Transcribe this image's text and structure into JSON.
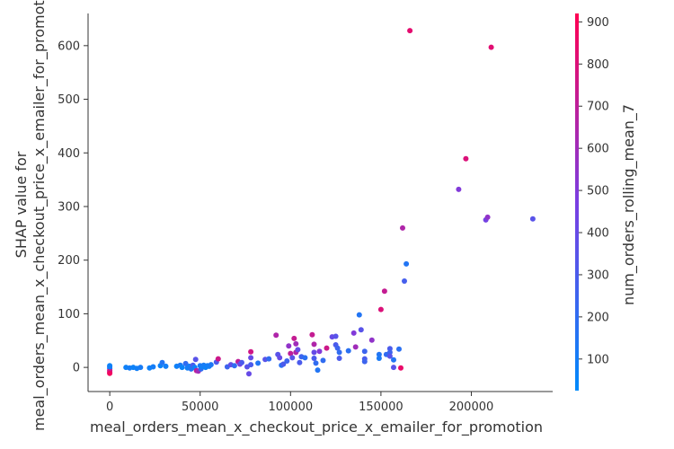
{
  "chart_data": {
    "type": "scatter",
    "xlabel": "meal_orders_mean_x_checkout_price_x_emailer_for_promotion",
    "ylabel_lines": [
      "SHAP value for",
      "meal_orders_mean_x_checkout_price_x_emailer_for_promotion"
    ],
    "xlim": [
      -12000,
      245000
    ],
    "ylim": [
      -45,
      660
    ],
    "xticks": [
      0,
      50000,
      100000,
      150000,
      200000
    ],
    "xtick_labels": [
      "0",
      "50000",
      "100000",
      "150000",
      "200000"
    ],
    "yticks": [
      0,
      100,
      200,
      300,
      400,
      500,
      600
    ],
    "ytick_labels": [
      "0",
      "100",
      "200",
      "300",
      "400",
      "500",
      "600"
    ],
    "grid": false,
    "colorbar": {
      "label": "num_orders_rolling_mean_7",
      "range": [
        25,
        920
      ],
      "ticks": [
        100,
        200,
        300,
        400,
        500,
        600,
        700,
        800,
        900
      ],
      "tick_labels": [
        "100",
        "200",
        "300",
        "400",
        "500",
        "600",
        "700",
        "800",
        "900"
      ],
      "colors": [
        "#008afb",
        "#7a3ee2",
        "#ff0052"
      ]
    },
    "points": [
      {
        "x": 0,
        "y": 3,
        "c": 60
      },
      {
        "x": 0,
        "y": -2,
        "c": 120
      },
      {
        "x": 0,
        "y": -6,
        "c": 820
      },
      {
        "x": 0,
        "y": -9,
        "c": 700
      },
      {
        "x": 0,
        "y": -11,
        "c": 880
      },
      {
        "x": 0,
        "y": 1,
        "c": 90
      },
      {
        "x": 9000,
        "y": 0,
        "c": 80
      },
      {
        "x": 11000,
        "y": -1,
        "c": 100
      },
      {
        "x": 13000,
        "y": 0,
        "c": 70
      },
      {
        "x": 15000,
        "y": -2,
        "c": 90
      },
      {
        "x": 17000,
        "y": 0,
        "c": 110
      },
      {
        "x": 22000,
        "y": -1,
        "c": 80
      },
      {
        "x": 24000,
        "y": 1,
        "c": 100
      },
      {
        "x": 28000,
        "y": 3,
        "c": 70
      },
      {
        "x": 29000,
        "y": 9,
        "c": 150
      },
      {
        "x": 31000,
        "y": 2,
        "c": 90
      },
      {
        "x": 37000,
        "y": 2,
        "c": 80
      },
      {
        "x": 39000,
        "y": 4,
        "c": 120
      },
      {
        "x": 40000,
        "y": 0,
        "c": 60
      },
      {
        "x": 42000,
        "y": 7,
        "c": 200
      },
      {
        "x": 43000,
        "y": -1,
        "c": 90
      },
      {
        "x": 44000,
        "y": 2,
        "c": 110
      },
      {
        "x": 45000,
        "y": -3,
        "c": 150
      },
      {
        "x": 46000,
        "y": 4,
        "c": 300
      },
      {
        "x": 47000,
        "y": 0,
        "c": 80
      },
      {
        "x": 47500,
        "y": 15,
        "c": 350
      },
      {
        "x": 48000,
        "y": -6,
        "c": 700
      },
      {
        "x": 49000,
        "y": -7,
        "c": 600
      },
      {
        "x": 50000,
        "y": 3,
        "c": 120
      },
      {
        "x": 50500,
        "y": -3,
        "c": 200
      },
      {
        "x": 51000,
        "y": 1,
        "c": 90
      },
      {
        "x": 52000,
        "y": 4,
        "c": 110
      },
      {
        "x": 53000,
        "y": 0,
        "c": 70
      },
      {
        "x": 54000,
        "y": 3,
        "c": 100
      },
      {
        "x": 55000,
        "y": 2,
        "c": 90
      },
      {
        "x": 56000,
        "y": 5,
        "c": 130
      },
      {
        "x": 59000,
        "y": 10,
        "c": 300
      },
      {
        "x": 60000,
        "y": 16,
        "c": 750
      },
      {
        "x": 65000,
        "y": 1,
        "c": 250
      },
      {
        "x": 67000,
        "y": 5,
        "c": 380
      },
      {
        "x": 69000,
        "y": 3,
        "c": 200
      },
      {
        "x": 71000,
        "y": 11,
        "c": 700
      },
      {
        "x": 72000,
        "y": 6,
        "c": 450
      },
      {
        "x": 73000,
        "y": 9,
        "c": 300
      },
      {
        "x": 76000,
        "y": 1,
        "c": 350
      },
      {
        "x": 77000,
        "y": -12,
        "c": 400
      },
      {
        "x": 78000,
        "y": 5,
        "c": 300
      },
      {
        "x": 78000,
        "y": 18,
        "c": 400
      },
      {
        "x": 78000,
        "y": 29,
        "c": 760
      },
      {
        "x": 82000,
        "y": 8,
        "c": 150
      },
      {
        "x": 86000,
        "y": 15,
        "c": 350
      },
      {
        "x": 88000,
        "y": 16,
        "c": 200
      },
      {
        "x": 92000,
        "y": 60,
        "c": 650
      },
      {
        "x": 93000,
        "y": 24,
        "c": 350
      },
      {
        "x": 94000,
        "y": 18,
        "c": 400
      },
      {
        "x": 95000,
        "y": 4,
        "c": 180
      },
      {
        "x": 96000,
        "y": 6,
        "c": 300
      },
      {
        "x": 98000,
        "y": 12,
        "c": 250
      },
      {
        "x": 99000,
        "y": 40,
        "c": 550
      },
      {
        "x": 100000,
        "y": 26,
        "c": 700
      },
      {
        "x": 101000,
        "y": 18,
        "c": 350
      },
      {
        "x": 102000,
        "y": 54,
        "c": 720
      },
      {
        "x": 103000,
        "y": 44,
        "c": 600
      },
      {
        "x": 103000,
        "y": 28,
        "c": 650
      },
      {
        "x": 104000,
        "y": 33,
        "c": 400
      },
      {
        "x": 105000,
        "y": 9,
        "c": 300
      },
      {
        "x": 106000,
        "y": 20,
        "c": 250
      },
      {
        "x": 108000,
        "y": 18,
        "c": 180
      },
      {
        "x": 112000,
        "y": 61,
        "c": 720
      },
      {
        "x": 113000,
        "y": 43,
        "c": 650
      },
      {
        "x": 113000,
        "y": 28,
        "c": 400
      },
      {
        "x": 113000,
        "y": 17,
        "c": 300
      },
      {
        "x": 114000,
        "y": 8,
        "c": 200
      },
      {
        "x": 115000,
        "y": -5,
        "c": 150
      },
      {
        "x": 116000,
        "y": 30,
        "c": 500
      },
      {
        "x": 118000,
        "y": 13,
        "c": 200
      },
      {
        "x": 120000,
        "y": 36,
        "c": 750
      },
      {
        "x": 123000,
        "y": 57,
        "c": 400
      },
      {
        "x": 125000,
        "y": 58,
        "c": 350
      },
      {
        "x": 125000,
        "y": 42,
        "c": 300
      },
      {
        "x": 126000,
        "y": 36,
        "c": 250
      },
      {
        "x": 127000,
        "y": 28,
        "c": 200
      },
      {
        "x": 127000,
        "y": 17,
        "c": 300
      },
      {
        "x": 132000,
        "y": 31,
        "c": 180
      },
      {
        "x": 135000,
        "y": 64,
        "c": 500
      },
      {
        "x": 136000,
        "y": 38,
        "c": 600
      },
      {
        "x": 138000,
        "y": 98,
        "c": 150
      },
      {
        "x": 139000,
        "y": 70,
        "c": 350
      },
      {
        "x": 141000,
        "y": 30,
        "c": 250
      },
      {
        "x": 141000,
        "y": 16,
        "c": 300
      },
      {
        "x": 141000,
        "y": 11,
        "c": 250
      },
      {
        "x": 145000,
        "y": 51,
        "c": 550
      },
      {
        "x": 149000,
        "y": 24,
        "c": 150
      },
      {
        "x": 149000,
        "y": 17,
        "c": 120
      },
      {
        "x": 150000,
        "y": 108,
        "c": 800
      },
      {
        "x": 152000,
        "y": 142,
        "c": 720
      },
      {
        "x": 153000,
        "y": 24,
        "c": 200
      },
      {
        "x": 155000,
        "y": 35,
        "c": 300
      },
      {
        "x": 155000,
        "y": 28,
        "c": 250
      },
      {
        "x": 155000,
        "y": 21,
        "c": 350
      },
      {
        "x": 157000,
        "y": 14,
        "c": 150
      },
      {
        "x": 157000,
        "y": 0,
        "c": 350
      },
      {
        "x": 160000,
        "y": 34,
        "c": 180
      },
      {
        "x": 161000,
        "y": -1,
        "c": 850
      },
      {
        "x": 162000,
        "y": 260,
        "c": 650
      },
      {
        "x": 163000,
        "y": 161,
        "c": 280
      },
      {
        "x": 164000,
        "y": 193,
        "c": 150
      },
      {
        "x": 166000,
        "y": 628,
        "c": 830
      },
      {
        "x": 193000,
        "y": 332,
        "c": 500
      },
      {
        "x": 197000,
        "y": 389,
        "c": 800
      },
      {
        "x": 208000,
        "y": 275,
        "c": 450
      },
      {
        "x": 209000,
        "y": 280,
        "c": 550
      },
      {
        "x": 211000,
        "y": 597,
        "c": 820
      },
      {
        "x": 234000,
        "y": 277,
        "c": 350
      }
    ]
  }
}
